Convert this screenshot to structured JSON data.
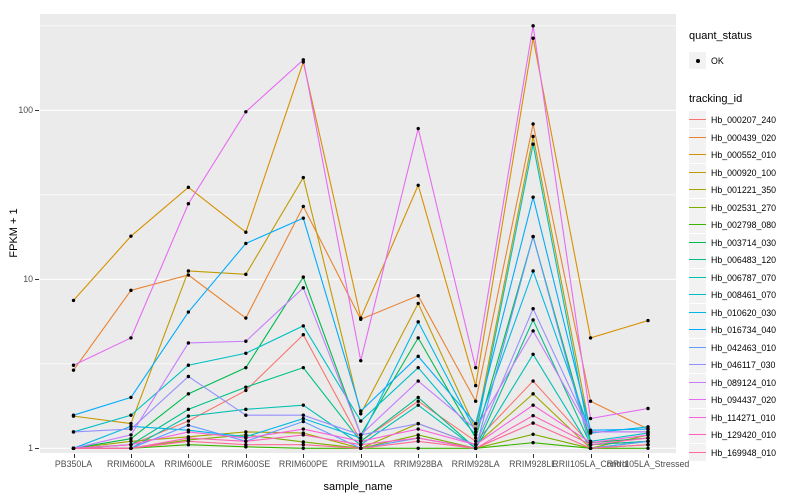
{
  "figure": {
    "background": "#FFFFFF",
    "panel_background": "#EBEBEB",
    "gridline_color": "#FFFFFF",
    "tick_label_color": "#4D4D4D"
  },
  "legend": {
    "quant_status_title": "quant_status",
    "quant_status_items": [
      {
        "label": "OK",
        "glyph": "black-point"
      }
    ],
    "tracking_id_title": "tracking_id"
  },
  "chart_data": {
    "type": "line",
    "title": "",
    "xlabel": "sample_name",
    "ylabel": "FPKM + 1",
    "y_scale": "log10",
    "y_ticks": [
      1,
      10,
      100
    ],
    "y_minor_ticks": [
      3.162,
      31.62,
      316.2
    ],
    "ylim_log": [
      0.916,
      104.7
    ],
    "grid": true,
    "legend_position": "right",
    "point_color": "#000000",
    "categories": [
      "PB350LA",
      "RRIM600LA",
      "RRIM600LE",
      "RRIM600SE",
      "RRIM600PE",
      "RRIM901LA",
      "RRIM928BA",
      "RRIM928LA",
      "RRIM928LE",
      "RRII105LA_Control",
      "RRII105LA_Stressed"
    ],
    "series": [
      {
        "name": "Hb_000207_240",
        "color": "#F8766D",
        "values": [
          1.0,
          1.05,
          1.45,
          2.2,
          4.7,
          1.1,
          1.9,
          1.1,
          2.5,
          1.05,
          1.1
        ]
      },
      {
        "name": "Hb_000439_020",
        "color": "#EA8331",
        "values": [
          2.9,
          8.6,
          10.6,
          5.9,
          27,
          5.8,
          8.0,
          1.9,
          83,
          1.9,
          1.3
        ]
      },
      {
        "name": "Hb_000552_010",
        "color": "#D89000",
        "values": [
          7.5,
          18,
          35,
          19,
          193,
          5.9,
          36,
          2.35,
          267,
          4.5,
          5.7
        ]
      },
      {
        "name": "Hb_000920_100",
        "color": "#C09B00",
        "values": [
          1.55,
          1.4,
          11.2,
          10.7,
          40,
          1.6,
          7.2,
          1.3,
          70,
          1.25,
          1.25
        ]
      },
      {
        "name": "Hb_001221_350",
        "color": "#A3A500",
        "values": [
          1.0,
          1.1,
          1.17,
          1.25,
          1.23,
          1.0,
          1.4,
          1.05,
          2.1,
          1.0,
          1.2
        ]
      },
      {
        "name": "Hb_002531_270",
        "color": "#7CAE00",
        "values": [
          1.0,
          1.0,
          1.12,
          1.2,
          1.09,
          1.0,
          1.2,
          1.0,
          1.21,
          1.0,
          1.05
        ]
      },
      {
        "name": "Hb_002798_080",
        "color": "#39B600",
        "values": [
          1.0,
          1.0,
          1.05,
          1.02,
          1.0,
          1.0,
          1.0,
          1.0,
          1.08,
          1.0,
          1.0
        ]
      },
      {
        "name": "Hb_003714_030",
        "color": "#00BB4E",
        "values": [
          1.0,
          1.14,
          2.1,
          3.0,
          10.3,
          1.2,
          4.5,
          1.15,
          17.9,
          1.08,
          1.15
        ]
      },
      {
        "name": "Hb_006483_120",
        "color": "#00C087",
        "values": [
          1.0,
          1.05,
          1.7,
          2.3,
          3.0,
          1.1,
          2.0,
          1.0,
          5.75,
          1.05,
          1.1
        ]
      },
      {
        "name": "Hb_006787_070",
        "color": "#00C0B2",
        "values": [
          1.0,
          1.0,
          1.55,
          1.7,
          1.8,
          1.05,
          1.8,
          1.0,
          3.6,
          1.0,
          1.1
        ]
      },
      {
        "name": "Hb_008461_070",
        "color": "#00BFC4",
        "values": [
          1.25,
          1.57,
          3.1,
          3.65,
          5.3,
          1.45,
          3.0,
          1.2,
          63,
          1.1,
          1.23
        ]
      },
      {
        "name": "Hb_010620_030",
        "color": "#00B8E5",
        "values": [
          1.0,
          1.35,
          1.28,
          1.17,
          1.5,
          1.15,
          5.6,
          1.25,
          11.2,
          1.23,
          1.34
        ]
      },
      {
        "name": "Hb_016734_040",
        "color": "#00ACFC",
        "values": [
          1.57,
          2.0,
          6.4,
          16.3,
          23,
          1.66,
          3.5,
          1.4,
          30.6,
          1.28,
          1.3
        ]
      },
      {
        "name": "Hb_042463_010",
        "color": "#619CFF",
        "values": [
          1.0,
          1.0,
          1.37,
          1.1,
          1.44,
          1.0,
          1.15,
          1.0,
          17.9,
          1.0,
          1.1
        ]
      },
      {
        "name": "Hb_046117_030",
        "color": "#9590FF",
        "values": [
          1.25,
          1.3,
          2.66,
          1.57,
          1.57,
          1.2,
          1.4,
          1.05,
          6.7,
          1.25,
          1.25
        ]
      },
      {
        "name": "Hb_089124_010",
        "color": "#C77CFF",
        "values": [
          1.0,
          1.2,
          4.2,
          4.3,
          8.9,
          1.2,
          2.5,
          1.3,
          4.95,
          1.25,
          1.25
        ]
      },
      {
        "name": "Hb_094437_020",
        "color": "#E76BF3",
        "values": [
          3.1,
          4.5,
          28,
          98,
          199,
          3.3,
          78,
          3.0,
          316,
          1.5,
          1.72
        ]
      },
      {
        "name": "Hb_114271_010",
        "color": "#FA62DB",
        "values": [
          1.0,
          1.05,
          1.25,
          1.15,
          1.3,
          1.1,
          1.3,
          1.05,
          1.8,
          1.08,
          1.2
        ]
      },
      {
        "name": "Hb_129420_010",
        "color": "#FF62BC",
        "values": [
          1.0,
          1.0,
          1.15,
          1.1,
          1.2,
          1.05,
          1.15,
          1.0,
          1.56,
          1.05,
          1.15
        ]
      },
      {
        "name": "Hb_169948_010",
        "color": "#FF6A98",
        "values": [
          1.0,
          1.0,
          1.1,
          1.05,
          1.05,
          1.0,
          1.1,
          1.0,
          1.41,
          1.0,
          1.05
        ]
      }
    ]
  }
}
